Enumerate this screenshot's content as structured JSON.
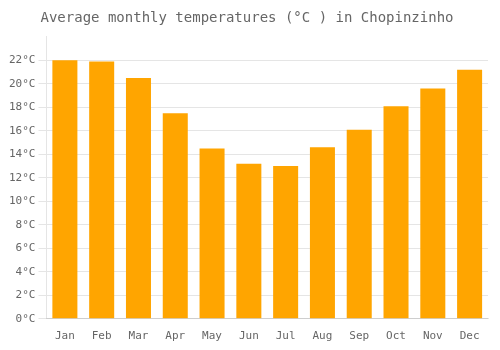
{
  "chart_data": {
    "type": "bar",
    "title": "Average monthly temperatures (°C ) in Chopinzinho",
    "categories": [
      "Jan",
      "Feb",
      "Mar",
      "Apr",
      "May",
      "Jun",
      "Jul",
      "Aug",
      "Sep",
      "Oct",
      "Nov",
      "Dec"
    ],
    "values": [
      22.0,
      21.9,
      20.5,
      17.5,
      14.5,
      13.2,
      13.0,
      14.6,
      16.1,
      18.1,
      19.6,
      21.2
    ],
    "color": "#FFA500",
    "ylim": [
      0,
      24
    ],
    "yticks": [
      {
        "value": 0,
        "label": "0°C"
      },
      {
        "value": 2,
        "label": "2°C"
      },
      {
        "value": 4,
        "label": "4°C"
      },
      {
        "value": 6,
        "label": "6°C"
      },
      {
        "value": 8,
        "label": "8°C"
      },
      {
        "value": 10,
        "label": "10°C"
      },
      {
        "value": 12,
        "label": "12°C"
      },
      {
        "value": 14,
        "label": "14°C"
      },
      {
        "value": 16,
        "label": "16°C"
      },
      {
        "value": 18,
        "label": "18°C"
      },
      {
        "value": 20,
        "label": "20°C"
      },
      {
        "value": 22,
        "label": "22°C"
      }
    ],
    "grid": true
  }
}
